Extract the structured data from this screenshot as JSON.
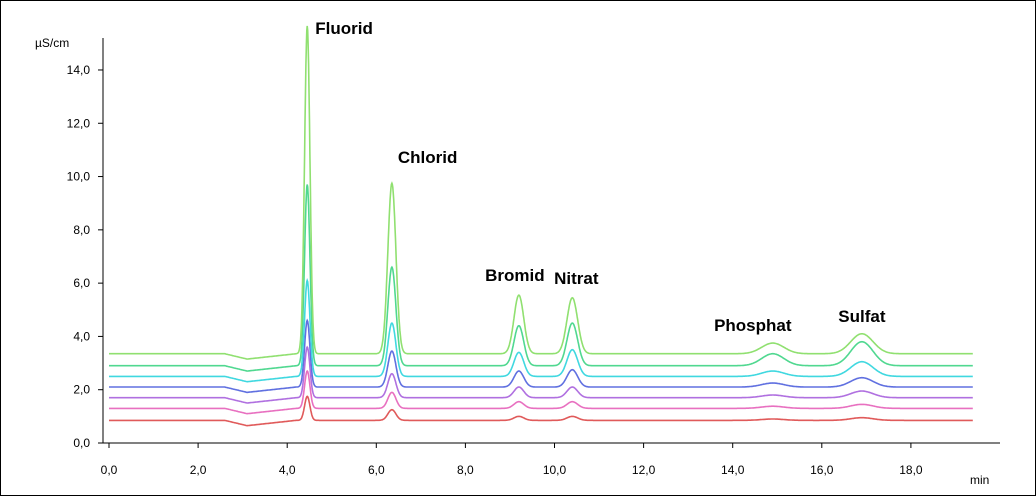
{
  "chart_data": {
    "type": "line",
    "title": "",
    "xlabel": "min",
    "ylabel": "µS/cm",
    "xlim": [
      0,
      20
    ],
    "ylim": [
      0,
      15.2
    ],
    "x_ticks": [
      "0,0",
      "2,0",
      "4,0",
      "6,0",
      "8,0",
      "10,0",
      "12,0",
      "14,0",
      "16,0",
      "18,0"
    ],
    "x_tick_values": [
      0,
      2,
      4,
      6,
      8,
      10,
      12,
      14,
      16,
      18
    ],
    "y_ticks": [
      "0,0",
      "2,0",
      "4,0",
      "6,0",
      "8,0",
      "10,0",
      "12,0",
      "14,0"
    ],
    "y_tick_values": [
      0,
      2,
      4,
      6,
      8,
      10,
      12,
      14
    ],
    "grid": false,
    "dip": {
      "center": 3.1,
      "depth": 0.2,
      "rise_end": 4.2
    },
    "peaks": [
      {
        "label": "Fluorid",
        "time": 4.45,
        "width": 0.06
      },
      {
        "label": "Chlorid",
        "time": 6.35,
        "width": 0.09
      },
      {
        "label": "Bromid",
        "time": 9.2,
        "width": 0.11
      },
      {
        "label": "Nitrat",
        "time": 10.4,
        "width": 0.12
      },
      {
        "label": "Phosphat",
        "time": 14.9,
        "width": 0.25
      },
      {
        "label": "Sulfat",
        "time": 16.9,
        "width": 0.25
      }
    ],
    "series": [
      {
        "color": "#e05a5a",
        "baseline": 0.85,
        "heights": [
          0.9,
          0.4,
          0.15,
          0.15,
          0.05,
          0.1
        ]
      },
      {
        "color": "#e870c0",
        "baseline": 1.3,
        "heights": [
          1.4,
          0.6,
          0.25,
          0.25,
          0.08,
          0.15
        ]
      },
      {
        "color": "#b070e0",
        "baseline": 1.7,
        "heights": [
          1.9,
          0.9,
          0.4,
          0.4,
          0.1,
          0.25
        ]
      },
      {
        "color": "#6070e0",
        "baseline": 2.1,
        "heights": [
          2.5,
          1.35,
          0.6,
          0.65,
          0.15,
          0.35
        ]
      },
      {
        "color": "#40d8e0",
        "baseline": 2.5,
        "heights": [
          3.6,
          2.0,
          0.9,
          1.0,
          0.2,
          0.55
        ]
      },
      {
        "color": "#50d890",
        "baseline": 2.9,
        "heights": [
          6.8,
          3.7,
          1.5,
          1.6,
          0.45,
          0.9
        ]
      },
      {
        "color": "#90e070",
        "baseline": 3.35,
        "heights": [
          12.3,
          6.4,
          2.2,
          2.1,
          0.4,
          0.75
        ]
      }
    ]
  }
}
